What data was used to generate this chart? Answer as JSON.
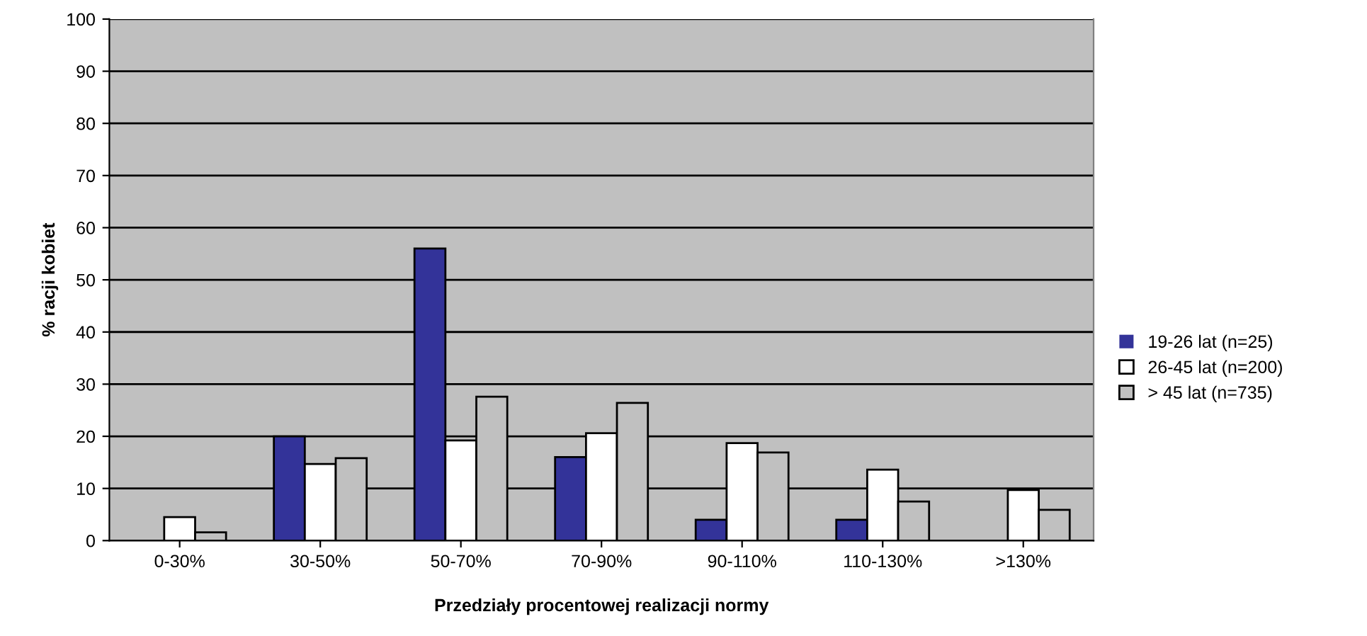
{
  "chart_data": {
    "type": "bar",
    "xlabel": "Przedziały procentowej realizacji normy",
    "ylabel": "% racji kobiet",
    "categories": [
      "0-30%",
      "30-50%",
      "50-70%",
      "70-90%",
      "90-110%",
      "110-130%",
      ">130%"
    ],
    "series": [
      {
        "name": "19-26 lat (n=25)",
        "color": "#333399",
        "values": [
          0,
          20,
          56,
          16,
          4,
          4,
          0
        ]
      },
      {
        "name": "26-45 lat (n=200)",
        "color": "#ffffff",
        "values": [
          4.5,
          14.7,
          19.2,
          20.6,
          18.7,
          13.6,
          9.7
        ]
      },
      {
        "name": "> 45 lat (n=735)",
        "color": "#c0c0c0",
        "values": [
          1.6,
          15.8,
          27.6,
          26.4,
          16.9,
          7.5,
          5.9
        ]
      }
    ],
    "ylim": [
      0,
      100
    ],
    "yticks": [
      0,
      10,
      20,
      30,
      40,
      50,
      60,
      70,
      80,
      90,
      100
    ],
    "grid": "y",
    "legend": "right"
  }
}
